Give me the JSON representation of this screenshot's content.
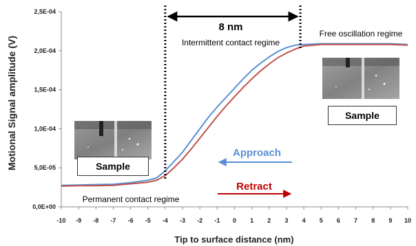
{
  "chart_data": {
    "type": "line",
    "title": "",
    "xlabel": "Tip to surface distance (nm)",
    "ylabel": "Motional Signal amplitude (V)",
    "xlim": [
      -10,
      10
    ],
    "ylim": [
      0,
      0.00025
    ],
    "x_ticks": [
      -10,
      -9,
      -8,
      -7,
      -6,
      -5,
      -4,
      -3,
      -2,
      -1,
      0,
      1,
      2,
      3,
      4,
      5,
      6,
      7,
      8,
      9,
      10
    ],
    "y_ticks": [
      0,
      5e-05,
      0.0001,
      0.00015,
      0.0002,
      0.00025
    ],
    "y_tick_labels": [
      "0,0E+00",
      "5,0E-05",
      "1,0E-04",
      "1,5E-04",
      "2,0E-04",
      "2,5E-04"
    ],
    "grid": false,
    "series": [
      {
        "name": "Approach",
        "color": "#5a8fd4",
        "x": [
          -10,
          -9,
          -8,
          -7,
          -6,
          -5,
          -4.5,
          -4,
          -3.5,
          -3,
          -2.5,
          -2,
          -1.5,
          -1,
          -0.5,
          0,
          0.5,
          1,
          1.5,
          2,
          2.5,
          3,
          3.5,
          4,
          5,
          6,
          7,
          8,
          9,
          10
        ],
        "y": [
          2.75e-05,
          2.8e-05,
          2.85e-05,
          2.9e-05,
          3.1e-05,
          3.4e-05,
          3.7e-05,
          4.6e-05,
          5.8e-05,
          7e-05,
          8.5e-05,
          0.0001,
          0.000115,
          0.000128,
          0.00014,
          0.000152,
          0.000164,
          0.000175,
          0.000184,
          0.000192,
          0.000199,
          0.000204,
          0.000207,
          0.000208,
          0.000209,
          0.000209,
          0.000209,
          0.000209,
          0.000209,
          0.000208
        ]
      },
      {
        "name": "Retract",
        "color": "#c0504d",
        "x": [
          -10,
          -9,
          -8,
          -7,
          -6,
          -5,
          -4.5,
          -4,
          -3.5,
          -3,
          -2.5,
          -2,
          -1.5,
          -1,
          -0.5,
          0,
          0.5,
          1,
          1.5,
          2,
          2.5,
          3,
          3.5,
          4,
          5,
          6,
          7,
          8,
          9,
          10
        ],
        "y": [
          2.65e-05,
          2.7e-05,
          2.7e-05,
          2.75e-05,
          2.95e-05,
          3.15e-05,
          3.4e-05,
          4e-05,
          5e-05,
          6.1e-05,
          7.4e-05,
          8.8e-05,
          0.000102,
          0.000116,
          0.000129,
          0.000141,
          0.000153,
          0.000164,
          0.000174,
          0.000183,
          0.000191,
          0.000197,
          0.000202,
          0.000206,
          0.000208,
          0.000208,
          0.000208,
          0.000208,
          0.000208,
          0.000207
        ]
      }
    ],
    "annotations": {
      "span": {
        "x1": -4,
        "x2": 3.8,
        "label": "8 nm"
      },
      "regimes": {
        "intermittent": "Intermittent contact regime",
        "free": "Free oscillation regime",
        "permanent": "Permanent contact regime"
      },
      "approach_label": "Approach",
      "retract_label": "Retract",
      "approach_color": "#5a8fd4",
      "retract_color": "#c00000"
    },
    "insets": {
      "left_label": "Sample",
      "right_label": "Sample"
    }
  }
}
